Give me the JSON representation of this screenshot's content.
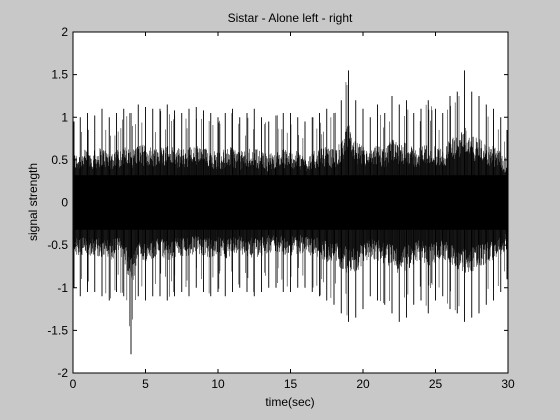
{
  "chart_data": {
    "type": "line",
    "title": "Sistar - Alone left - right",
    "xlabel": "time(sec)",
    "ylabel": "signal strength",
    "xlim": [
      0,
      30
    ],
    "ylim": [
      -2,
      2
    ],
    "x_ticks": [
      0,
      5,
      10,
      15,
      20,
      25,
      30
    ],
    "x_tick_labels": [
      "0",
      "5",
      "10",
      "15",
      "20",
      "25",
      "30"
    ],
    "y_ticks": [
      -2,
      -1.5,
      -1,
      -0.5,
      0,
      0.5,
      1,
      1.5,
      2
    ],
    "y_tick_labels": [
      "-2",
      "-1.5",
      "-1",
      "-0.5",
      "0",
      "0.5",
      "1",
      "1.5",
      "2"
    ],
    "grid": false,
    "legend": "none",
    "colors": {
      "figure_bg": "#c8c8c8",
      "axes_bg": "#ffffff",
      "signal": "#000000"
    },
    "series": [
      {
        "x": [
          0,
          0.5,
          1,
          1.5,
          2,
          2.5,
          3,
          3.5,
          4,
          4.5,
          5,
          5.5,
          6,
          6.5,
          7,
          7.5,
          8,
          8.5,
          9,
          9.5,
          10,
          10.5,
          11,
          11.5,
          12,
          12.5,
          13,
          13.5,
          14,
          14.5,
          15,
          15.5,
          16,
          16.5,
          17,
          17.5,
          18,
          18.5,
          19,
          19.5,
          20,
          20.5,
          21,
          21.5,
          22,
          22.5,
          23,
          23.5,
          24,
          24.5,
          25,
          25.5,
          26,
          26.5,
          27,
          27.5,
          28,
          28.5,
          29,
          29.5,
          30
        ],
        "upper": [
          0.95,
          1.0,
          1.05,
          1.02,
          1.1,
          1.0,
          1.05,
          1.1,
          1.05,
          1.15,
          1.12,
          1.1,
          1.1,
          1.15,
          1.08,
          1.05,
          1.1,
          1.12,
          1.08,
          1.05,
          1.0,
          1.05,
          1.1,
          1.0,
          1.05,
          1.1,
          1.0,
          0.95,
          1.02,
          1.05,
          1.05,
          1.0,
          0.95,
          1.0,
          1.05,
          1.1,
          1.05,
          1.2,
          1.55,
          1.2,
          1.1,
          1.0,
          1.15,
          1.05,
          1.25,
          1.15,
          1.2,
          1.05,
          1.1,
          1.2,
          1.1,
          1.05,
          1.25,
          1.3,
          1.55,
          1.3,
          1.25,
          1.15,
          1.1,
          1.0,
          0.85
        ],
        "lower": [
          -1.0,
          -1.1,
          -1.05,
          -1.05,
          -1.1,
          -1.15,
          -1.05,
          -1.1,
          -1.78,
          -1.1,
          -1.15,
          -1.1,
          -1.1,
          -1.15,
          -1.1,
          -1.05,
          -1.1,
          -1.0,
          -1.05,
          -1.1,
          -1.05,
          -1.1,
          -1.05,
          -1.0,
          -1.05,
          -1.1,
          -1.05,
          -1.0,
          -1.0,
          -1.05,
          -1.05,
          -1.0,
          -1.0,
          -1.05,
          -1.1,
          -1.15,
          -1.2,
          -1.3,
          -1.4,
          -1.35,
          -1.25,
          -1.1,
          -1.15,
          -1.2,
          -1.3,
          -1.4,
          -1.35,
          -1.2,
          -1.15,
          -1.3,
          -1.15,
          -1.1,
          -1.25,
          -1.3,
          -1.4,
          -1.35,
          -1.3,
          -1.2,
          -1.15,
          -1.05,
          -0.9
        ]
      }
    ]
  }
}
